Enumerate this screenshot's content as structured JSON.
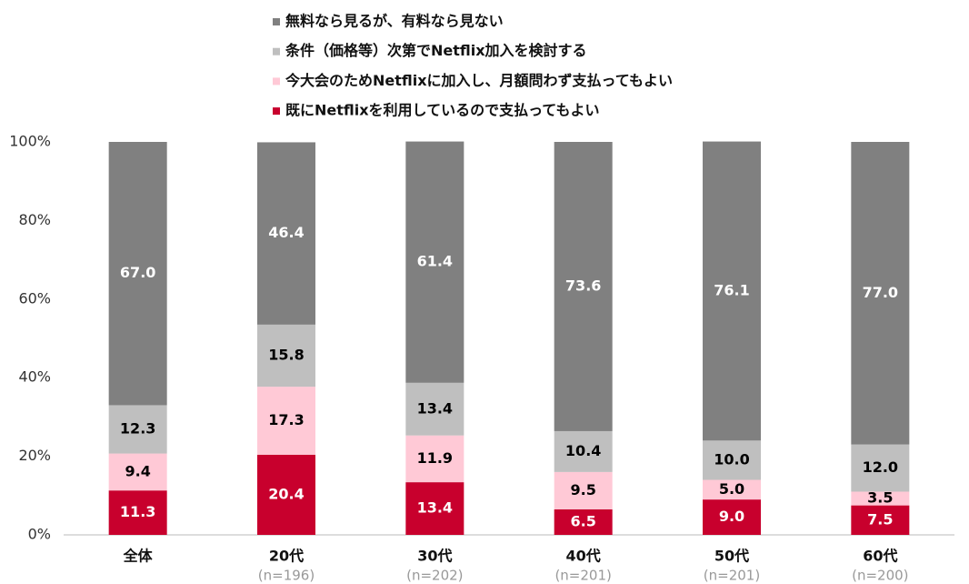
{
  "chart_data": {
    "type": "stacked_bar",
    "categories": [
      "全体",
      "20代",
      "30代",
      "40代",
      "50代",
      "60代"
    ],
    "category_notes": [
      null,
      "(n=196)",
      "(n=202)",
      "(n=201)",
      "(n=201)",
      "(n=200)"
    ],
    "series": [
      {
        "name": "既にNetflixを利用しているので支払ってもよい",
        "color": "#c8002d",
        "label_color": "#ffffff",
        "values": [
          11.3,
          20.4,
          13.4,
          6.5,
          9,
          7.5
        ],
        "value_labels": [
          "11.3",
          "20.4",
          "13.4",
          "6.5",
          "9.0",
          "7.5"
        ]
      },
      {
        "name": "今大会のためNetflixに加入し、月額問わず支払ってもよい",
        "color": "#ffc9d6",
        "label_color": "#000000",
        "values": [
          9.4,
          17.3,
          11.9,
          9.5,
          5,
          3.5
        ],
        "value_labels": [
          "9.4",
          "17.3",
          "11.9",
          "9.5",
          "5.0",
          "3.5"
        ]
      },
      {
        "name": "条件（価格等）次第でNetflix加入を検討する",
        "color": "#bfbfbf",
        "label_color": "#000000",
        "values": [
          12.3,
          15.8,
          13.4,
          10.4,
          10,
          12
        ],
        "value_labels": [
          "12.3",
          "15.8",
          "13.4",
          "10.4",
          "10.0",
          "12.0"
        ]
      },
      {
        "name": "無料なら見るが、有料なら見ない",
        "color": "#808080",
        "label_color": "#ffffff",
        "values": [
          67,
          46.4,
          61.4,
          73.6,
          76.1,
          77
        ],
        "value_labels": [
          "67.0",
          "46.4",
          "61.4",
          "73.6",
          "76.1",
          "77.0"
        ]
      }
    ],
    "ylim": [
      0,
      100
    ],
    "yticks": [
      {
        "value": 0,
        "label": "0%"
      },
      {
        "value": 20,
        "label": "20%"
      },
      {
        "value": 40,
        "label": "40%"
      },
      {
        "value": 60,
        "label": "60%"
      },
      {
        "value": 80,
        "label": "80%"
      },
      {
        "value": 100,
        "label": "100%"
      }
    ],
    "grid": false
  }
}
